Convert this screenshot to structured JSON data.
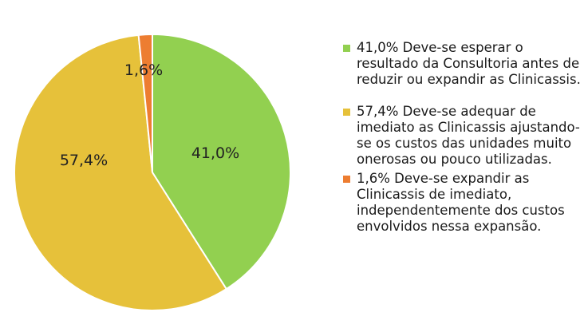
{
  "chart_data": {
    "type": "pie",
    "title": "",
    "legend_position": "right",
    "start_angle_deg": 0,
    "direction": "clockwise",
    "slices": [
      {
        "value": 41.0,
        "label": "41,0%",
        "legend": "41,0% Deve-se esperar o resultado da Consultoria antes de reduzir ou expandir as Clinicassis.",
        "color": "#92d050"
      },
      {
        "value": 57.4,
        "label": "57,4%",
        "legend": "57,4% Deve-se adequar de imediato as Clinicassis ajustando-se os custos das unidades muito onerosas ou pouco utilizadas.",
        "color": "#e6c13a"
      },
      {
        "value": 1.6,
        "label": "1,6%",
        "legend": "1,6% Deve-se expandir as Clinicassis de imediato, independentemente dos custos envolvidos nessa expansão.",
        "color": "#ed7d31"
      }
    ]
  }
}
